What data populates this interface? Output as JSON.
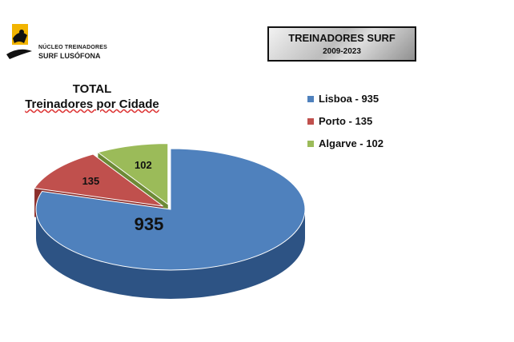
{
  "logo": {
    "line1": "NÚCLEO TREINADORES",
    "line2": "SURF LUSÓFONA"
  },
  "header": {
    "title": "TREINADORES SURF",
    "subtitle": "2009-2023"
  },
  "chart_data": {
    "type": "pie",
    "title": "TOTAL",
    "subtitle": "Treinadores por Cidade",
    "categories": [
      "Lisboa",
      "Porto",
      "Algarve"
    ],
    "values": [
      935,
      135,
      102
    ],
    "data_labels": [
      "935",
      "135",
      "102"
    ],
    "legend_labels": [
      "Lisboa - 935",
      "Porto - 135",
      "Algarve - 102"
    ],
    "colors": [
      "#4f81bd",
      "#c0504d",
      "#9bbb59"
    ],
    "side_colors": [
      "#2d5384",
      "#8c2f2c",
      "#6d8a36"
    ],
    "three_d": true,
    "exploded": [
      "Porto",
      "Algarve"
    ],
    "legend_position": "right"
  }
}
